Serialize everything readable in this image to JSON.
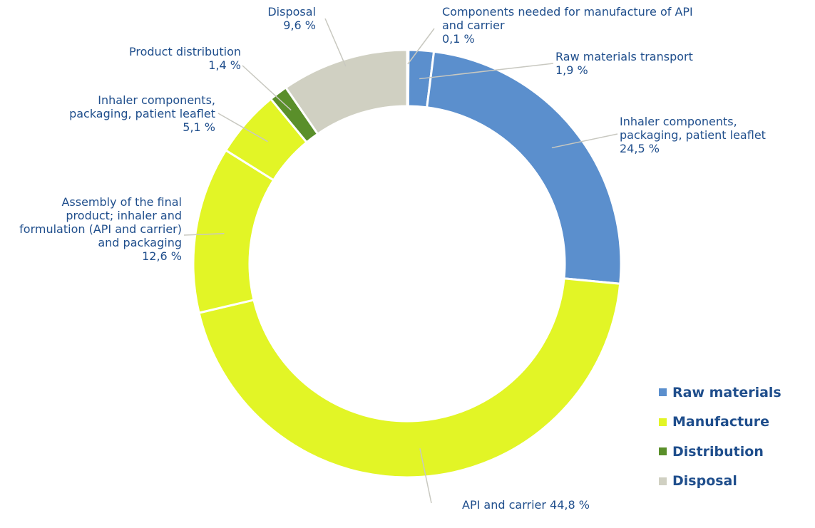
{
  "chart_data": {
    "type": "pie",
    "variant": "donut",
    "legend_position": "bottom-right",
    "colors": {
      "Raw materials": "#5b8fcd",
      "Manufacture": "#e2f526",
      "Distribution": "#5a8f2a",
      "Disposal": "#d0d0c2"
    },
    "legend": [
      "Raw materials",
      "Manufacture",
      "Distribution",
      "Disposal"
    ],
    "slices": [
      {
        "label": "Components needed for manufacture of API and carrier",
        "value": 0.1,
        "value_text": "0,1 %",
        "group": "Raw materials"
      },
      {
        "label": "Raw materials transport",
        "value": 1.9,
        "value_text": "1,9 %",
        "group": "Raw materials"
      },
      {
        "label": "Inhaler components, packaging, patient leaflet",
        "value": 24.5,
        "value_text": "24,5 %",
        "group": "Raw materials"
      },
      {
        "label": "API and carrier",
        "value": 44.8,
        "value_text": "44,8 %",
        "group": "Manufacture"
      },
      {
        "label": "Assembly of the final product; inhaler and formulation (API and carrier) and packaging",
        "value": 12.6,
        "value_text": "12,6 %",
        "group": "Manufacture"
      },
      {
        "label": "Inhaler components, packaging, patient leaflet",
        "value": 5.1,
        "value_text": "5,1 %",
        "group": "Manufacture"
      },
      {
        "label": "Product distribution",
        "value": 1.4,
        "value_text": "1,4 %",
        "group": "Distribution"
      },
      {
        "label": "Disposal",
        "value": 9.6,
        "value_text": "9,6 %",
        "group": "Disposal"
      }
    ],
    "labels": {
      "s0": {
        "lines": [
          "Components needed for manufacture of API",
          "and carrier",
          "0,1 %"
        ]
      },
      "s1": {
        "lines": [
          "Raw materials transport",
          "1,9 %"
        ]
      },
      "s2": {
        "lines": [
          "Inhaler components,",
          "packaging, patient leaflet",
          "24,5 %"
        ]
      },
      "s3": {
        "lines": [
          "API and carrier 44,8 %"
        ]
      },
      "s4": {
        "lines": [
          "Assembly of the final",
          "product; inhaler and",
          "formulation (API and carrier)",
          "and packaging",
          "12,6 %"
        ]
      },
      "s5": {
        "lines": [
          "Inhaler components,",
          "packaging, patient leaflet",
          "5,1 %"
        ]
      },
      "s6": {
        "lines": [
          "Product distribution",
          "1,4 %"
        ]
      },
      "s7": {
        "lines": [
          "Disposal",
          "9,6 %"
        ]
      }
    }
  }
}
